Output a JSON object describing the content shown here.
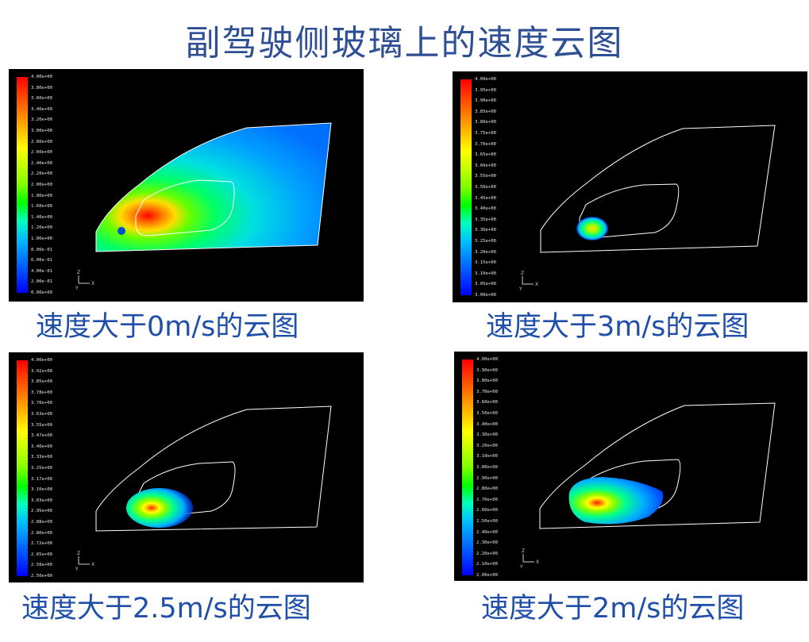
{
  "title": "副驾驶侧玻璃上的速度云图",
  "panels": [
    {
      "caption": "速度大于0m/s的云图",
      "legend_ticks": [
        "4.00e+00",
        "3.80e+00",
        "3.60e+00",
        "3.40e+00",
        "3.20e+00",
        "3.00e+00",
        "2.80e+00",
        "2.60e+00",
        "2.40e+00",
        "2.20e+00",
        "2.00e+00",
        "1.80e+00",
        "1.60e+00",
        "1.40e+00",
        "1.20e+00",
        "1.00e+00",
        "8.00e-01",
        "6.00e-01",
        "4.00e-01",
        "2.00e-01",
        "0.00e+00"
      ]
    },
    {
      "caption": "速度大于3m/s的云图",
      "legend_ticks": [
        "4.00e+00",
        "3.95e+00",
        "3.90e+00",
        "3.85e+00",
        "3.80e+00",
        "3.75e+00",
        "3.70e+00",
        "3.65e+00",
        "3.60e+00",
        "3.55e+00",
        "3.50e+00",
        "3.45e+00",
        "3.40e+00",
        "3.35e+00",
        "3.30e+00",
        "3.25e+00",
        "3.20e+00",
        "3.15e+00",
        "3.10e+00",
        "3.05e+00",
        "3.00e+00"
      ]
    },
    {
      "caption": "速度大于2.5m/s的云图",
      "legend_ticks": [
        "4.00e+00",
        "3.92e+00",
        "3.85e+00",
        "3.78e+00",
        "3.70e+00",
        "3.63e+00",
        "3.55e+00",
        "3.47e+00",
        "3.40e+00",
        "3.33e+00",
        "3.25e+00",
        "3.17e+00",
        "3.10e+00",
        "3.03e+00",
        "2.95e+00",
        "2.88e+00",
        "2.80e+00",
        "2.72e+00",
        "2.65e+00",
        "2.58e+00",
        "2.50e+00"
      ]
    },
    {
      "caption": "速度大于2m/s的云图",
      "legend_ticks": [
        "4.00e+00",
        "3.90e+00",
        "3.80e+00",
        "3.70e+00",
        "3.60e+00",
        "3.50e+00",
        "3.40e+00",
        "3.30e+00",
        "3.20e+00",
        "3.10e+00",
        "3.00e+00",
        "2.90e+00",
        "2.80e+00",
        "2.70e+00",
        "2.60e+00",
        "2.50e+00",
        "2.40e+00",
        "2.30e+00",
        "2.20e+00",
        "2.10e+00",
        "2.00e+00"
      ]
    }
  ],
  "colormap": [
    "#ff0000",
    "#ff4000",
    "#ff8000",
    "#ffbf00",
    "#ffff00",
    "#bfff00",
    "#80ff00",
    "#00ff00",
    "#00ffbf",
    "#00bfff",
    "#0080ff",
    "#0040ff",
    "#0000ff"
  ]
}
